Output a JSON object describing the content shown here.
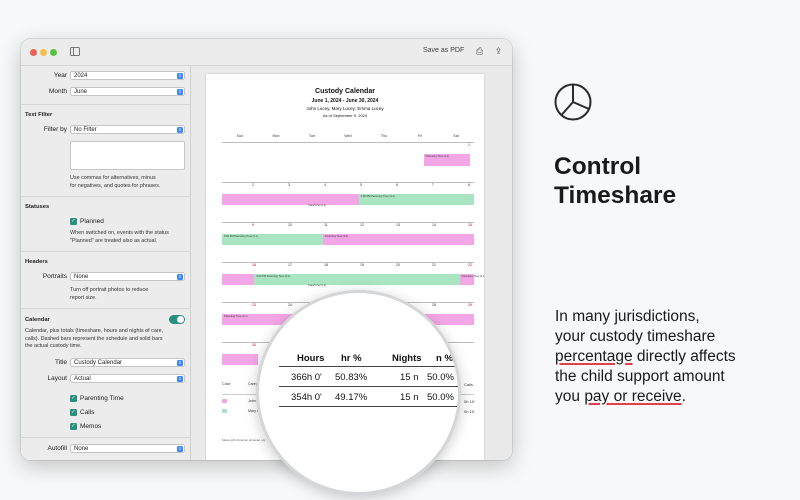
{
  "toolbar": {
    "save_label": "Save as PDF"
  },
  "sidebar": {
    "year_label": "Year",
    "year_value": "2024",
    "month_label": "Month",
    "month_value": "June",
    "text_filter_title": "Text Filter",
    "filter_by_label": "Filter by",
    "filter_by_value": "No Filter",
    "filter_note": [
      "Use commas for alternatives, minus",
      "for negatives, and quotes for phrases."
    ],
    "statuses_title": "Statuses",
    "planned_label": "Planned",
    "statuses_note": [
      "When switched on, events with the status",
      "\"Planned\" are treated also as actual."
    ],
    "headers_title": "Headers",
    "portraits_label": "Portraits",
    "portraits_value": "None",
    "portraits_note": [
      "Turn off portrait photos to reduce",
      "report size."
    ],
    "calendar_title": "Calendar",
    "calendar_note": [
      "Calendar, plus totals (timeshare, hours and nights of care,",
      "calls). Dashed bars represent the schedule and solid bars",
      "the actual custody time."
    ],
    "title_label": "Title",
    "title_value": "Custody Calendar",
    "layout_label": "Layout",
    "layout_value": "Actual",
    "checks": [
      "Parenting Time",
      "Calls",
      "Memos"
    ],
    "autofill_label": "Autofill",
    "autofill_value": "None"
  },
  "preview": {
    "title": "Custody Calendar",
    "date_range": "June 1, 2024 - June 30, 2024",
    "parties": "John Lucey, Mary Lucey; Emma Lucey",
    "as_of": "As of September 9, 2024",
    "weekdays": [
      "Sun",
      "Mon",
      "Tue",
      "Wed",
      "Thu",
      "Fri",
      "Sat"
    ],
    "day_numbers": [
      "1",
      "2",
      "3",
      "4",
      "5",
      "6",
      "7",
      "8",
      "9",
      "10",
      "11",
      "12",
      "13",
      "14",
      "15",
      "16",
      "17",
      "18",
      "19",
      "20",
      "21",
      "22",
      "23",
      "24",
      "25",
      "26",
      "27",
      "28",
      "29",
      "30"
    ],
    "bar_labels": {
      "w1_fri": "Parenting Time (3.1)",
      "w2_wed": "6:00 PM Parenting Time (3.1)",
      "w2_thu": "6:00 PM Parenting Time (3.1)",
      "w2_fri": "Parenting Time (3.1)",
      "w3_mon": "6:00 PM Parenting Time (3.1)",
      "w3_fri": "Parenting Time (3.1)",
      "w3_sat": "Weekend (3.1)",
      "w4_mon": "6:00 PM Parenting Time (3.1)",
      "w4_sat": "Parenting Time (3.1)",
      "w5_fri": "Parenting Time (3.1)",
      "facetime": "FaceTime (4.1)"
    },
    "legend_headers": [
      "Color",
      "Caregiver"
    ],
    "legend_names": [
      "John Lucey",
      "Mary Lucey"
    ],
    "footer": "Made with Almanac    almanac.org",
    "calls_head": "Calls",
    "calls_values": [
      "0h 10'",
      "0h 10'"
    ]
  },
  "magnifier": {
    "headers": [
      "Hours",
      "hr %",
      "Nights",
      "n %"
    ],
    "rows": [
      [
        "366h 0'",
        "50.83%",
        "15 n",
        "50.0%"
      ],
      [
        "354h 0'",
        "49.17%",
        "15 n",
        "50.0%"
      ]
    ]
  },
  "marketing": {
    "headline_1": "Control",
    "headline_2": "Timeshare",
    "body_1": "In many jurisdictions,",
    "body_2": "your custody timeshare",
    "body_3a": "percentage",
    "body_3b": " directly affects",
    "body_4": "the child support amount",
    "body_5a": "you ",
    "body_5b": "pay or receive",
    "body_5c": "."
  },
  "colors": {
    "accent_teal": "#2a8f7e",
    "caregiver_john": "#f3a6e6",
    "caregiver_mary": "#a9e5c0",
    "underline_red": "#e0414a"
  }
}
